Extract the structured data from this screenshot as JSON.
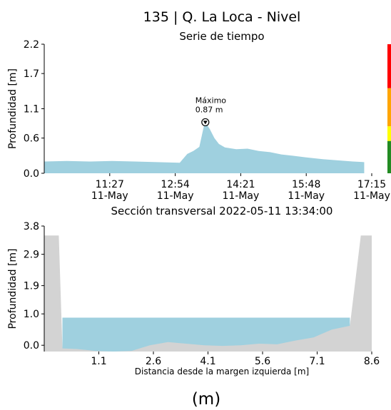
{
  "figure_title": "135 | Q. La Loca - Nivel",
  "panel_label": "(m)",
  "colors": {
    "water": "#9fd0df",
    "terrain": "#d3d3d3",
    "alert_red": "#ff0000",
    "alert_orange": "#ffa500",
    "alert_yellow": "#ffff00",
    "alert_green": "#228b22",
    "axis": "#000000"
  },
  "chart_data": [
    {
      "type": "area",
      "title": "Serie de tiempo",
      "xlabel": "",
      "ylabel": "Profundidad [m]",
      "ylim": [
        0.0,
        2.2
      ],
      "yticks": [
        0.0,
        0.6,
        1.1,
        1.7,
        2.2
      ],
      "ytick_labels": [
        "0.0",
        "0.6",
        "1.1",
        "1.7",
        "2.2"
      ],
      "xlim": [
        "2022-05-11 10:00",
        "2022-05-11 17:15"
      ],
      "xticks": [
        "2022-05-11 11:27",
        "2022-05-11 12:54",
        "2022-05-11 14:21",
        "2022-05-11 15:48",
        "2022-05-11 17:15"
      ],
      "xtick_labels": [
        [
          "11:27",
          "11-May"
        ],
        [
          "12:54",
          "11-May"
        ],
        [
          "14:21",
          "11-May"
        ],
        [
          "15:48",
          "11-May"
        ],
        [
          "17:15",
          "11-May"
        ]
      ],
      "annotation": {
        "label": "Máximo",
        "value_text": "0.87 m",
        "x": "2022-05-11 13:34",
        "y": 0.87
      },
      "threshold_bar": [
        {
          "level": "red",
          "from": 1.45,
          "to": 2.2
        },
        {
          "level": "orange",
          "from": 0.8,
          "to": 1.45
        },
        {
          "level": "yellow",
          "from": 0.55,
          "to": 0.8
        },
        {
          "level": "green",
          "from": 0.0,
          "to": 0.55
        }
      ],
      "series": [
        {
          "x": [
            "2022-05-11 10:00",
            "2022-05-11 10:30",
            "2022-05-11 11:00",
            "2022-05-11 11:30",
            "2022-05-11 12:00",
            "2022-05-11 12:30",
            "2022-05-11 13:00",
            "2022-05-11 13:10",
            "2022-05-11 13:18",
            "2022-05-11 13:26",
            "2022-05-11 13:32",
            "2022-05-11 13:34",
            "2022-05-11 13:40",
            "2022-05-11 13:46",
            "2022-05-11 13:52",
            "2022-05-11 14:00",
            "2022-05-11 14:15",
            "2022-05-11 14:30",
            "2022-05-11 14:45",
            "2022-05-11 15:00",
            "2022-05-11 15:15",
            "2022-05-11 15:30",
            "2022-05-11 15:48",
            "2022-05-11 16:10",
            "2022-05-11 16:30",
            "2022-05-11 16:50",
            "2022-05-11 17:05"
          ],
          "values": [
            0.2,
            0.21,
            0.2,
            0.21,
            0.2,
            0.19,
            0.18,
            0.33,
            0.38,
            0.45,
            0.8,
            0.87,
            0.75,
            0.6,
            0.5,
            0.44,
            0.41,
            0.42,
            0.38,
            0.36,
            0.32,
            0.3,
            0.27,
            0.24,
            0.22,
            0.2,
            0.19
          ]
        }
      ]
    },
    {
      "type": "area",
      "title": "Sección transversal 2022-05-11 13:34:00",
      "xlabel": "Distancia desde la margen izquierda [m]",
      "ylabel": "Profundidad [m]",
      "xlim": [
        -0.4,
        8.6
      ],
      "ylim": [
        -0.2,
        3.8
      ],
      "xticks": [
        1.1,
        2.6,
        4.1,
        5.6,
        7.1,
        8.6
      ],
      "xtick_labels": [
        "1.1",
        "2.6",
        "4.1",
        "5.6",
        "7.1",
        "8.6"
      ],
      "yticks": [
        0.0,
        1.0,
        1.9,
        2.9,
        3.8
      ],
      "ytick_labels": [
        "0.0",
        "1.0",
        "1.9",
        "2.9",
        "3.8"
      ],
      "water_level": 0.88,
      "water_extent": [
        0.1,
        8.0
      ],
      "terrain_x": [
        -0.4,
        0.0,
        0.1,
        0.5,
        1.0,
        1.5,
        2.0,
        2.5,
        3.0,
        3.5,
        4.0,
        4.5,
        5.0,
        5.5,
        6.0,
        6.5,
        7.0,
        7.5,
        8.0,
        8.3,
        8.6
      ],
      "terrain_y": [
        3.5,
        3.5,
        -0.1,
        -0.12,
        -0.18,
        -0.2,
        -0.18,
        0.0,
        0.1,
        0.05,
        0.0,
        -0.02,
        0.0,
        0.05,
        0.03,
        0.15,
        0.25,
        0.5,
        0.62,
        3.5,
        3.5
      ]
    }
  ]
}
